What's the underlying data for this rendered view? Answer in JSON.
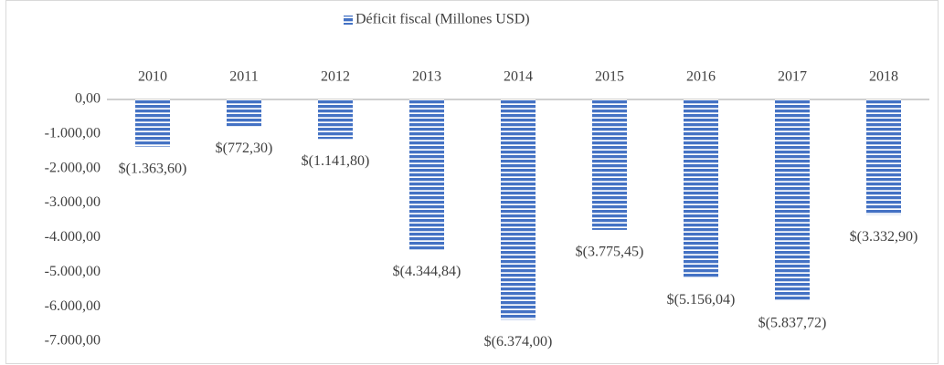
{
  "chart_data": {
    "type": "bar",
    "categories": [
      "2010",
      "2011",
      "2012",
      "2013",
      "2014",
      "2015",
      "2016",
      "2017",
      "2018"
    ],
    "series": [
      {
        "name": "Déficit fiscal (Millones USD)",
        "color": "#4472c4",
        "values": [
          -1363.6,
          -772.3,
          -1141.8,
          -4344.84,
          -6374,
          -3775.45,
          -5156.04,
          -5837.72,
          -3332.9
        ],
        "value_labels": [
          "$(1.363,60)",
          "$(772,30)",
          "$(1.141,80)",
          "$(4.344,84)",
          "$(6.374,00)",
          "$(3.775,45)",
          "$(5.156,04)",
          "$(5.837,72)",
          "$(3.332,90)"
        ]
      }
    ],
    "ylim": [
      -7000,
      0
    ],
    "yticks": [
      {
        "value": 0,
        "label": "0,00"
      },
      {
        "value": -1000,
        "label": "-1.000,00"
      },
      {
        "value": -2000,
        "label": "-2.000,00"
      },
      {
        "value": -3000,
        "label": "-3.000,00"
      },
      {
        "value": -4000,
        "label": "-4.000,00"
      },
      {
        "value": -5000,
        "label": "-5.000,00"
      },
      {
        "value": -6000,
        "label": "-6.000,00"
      },
      {
        "value": -7000,
        "label": "-7.000,00"
      }
    ],
    "legend": "top",
    "grid": false
  }
}
